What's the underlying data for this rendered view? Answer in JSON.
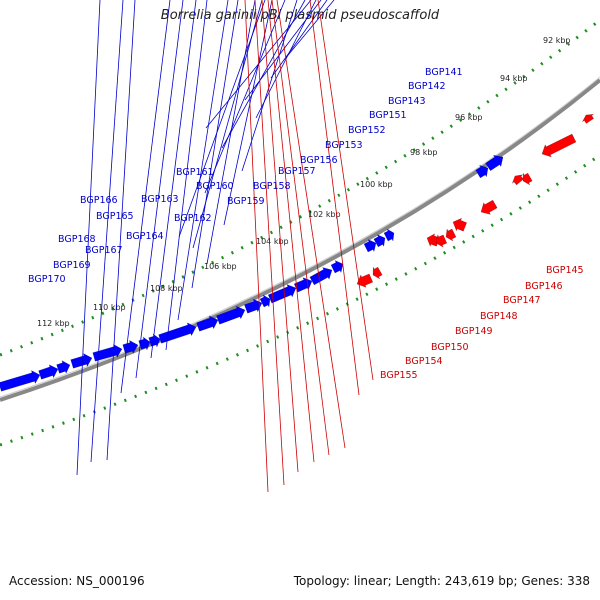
{
  "title": "Borrelia garinii pBi plasmid pseudoscaffold",
  "footer": {
    "accession": "Accession: NS_000196",
    "summary": "Topology: linear; Length: 243,619 bp; Genes: 338"
  },
  "colors": {
    "forward": "#0000ff",
    "reverse": "#ff0000",
    "backbone": "#888888",
    "ticks": "#1f8f1f",
    "forward_label": "#0000cc",
    "reverse_label": "#cc0000"
  },
  "scale_ticks": [
    "92 kbp",
    "94 kbp",
    "96 kbp",
    "98 kbp",
    "100 kbp",
    "102 kbp",
    "104 kbp",
    "106 kbp",
    "108 kbp",
    "110 kbp",
    "112 kbp"
  ],
  "forward_labels": [
    "BGP141",
    "BGP142",
    "BGP143",
    "BGP151",
    "BGP152",
    "BGP153",
    "BGP156",
    "BGP157",
    "BGP158",
    "BGP159",
    "BGP160",
    "BGP161",
    "BGP162",
    "BGP163",
    "BGP164",
    "BGP165",
    "BGP166",
    "BGP167",
    "BGP168",
    "BGP169",
    "BGP170"
  ],
  "reverse_labels": [
    "BGP145",
    "BGP146",
    "BGP147",
    "BGP148",
    "BGP149",
    "BGP150",
    "BGP154",
    "BGP155"
  ]
}
